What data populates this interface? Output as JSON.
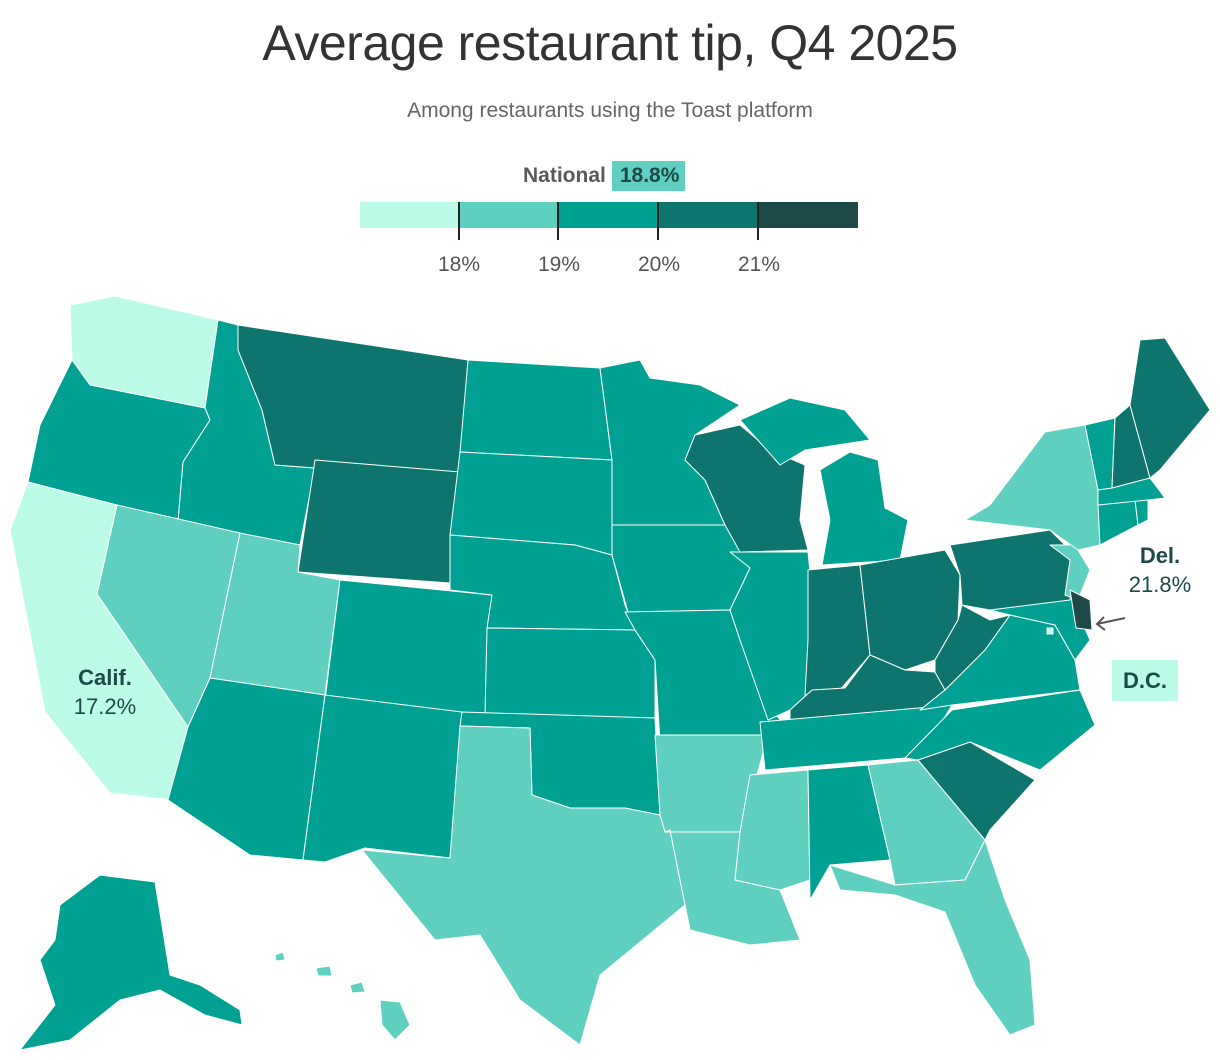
{
  "title": "Average restaurant tip, Q4 2025",
  "subtitle": "Among restaurants using the Toast platform",
  "national": {
    "label": "National",
    "value": "18.8%"
  },
  "legend": {
    "colors": [
      "#bdfbe9",
      "#5fcfc0",
      "#00a092",
      "#0d756d",
      "#1d4a48"
    ],
    "tick_labels": [
      "18%",
      "19%",
      "20%",
      "21%"
    ],
    "bin_edges": [
      18,
      19,
      20,
      21
    ]
  },
  "annotations": {
    "california": {
      "name": "Calif.",
      "value": "17.2%"
    },
    "delaware": {
      "name": "Del.",
      "value": "21.8%"
    },
    "dc": {
      "name": "D.C."
    }
  },
  "chart_data": {
    "type": "choropleth",
    "unit": "%",
    "national_average": 18.8,
    "color_bins": [
      {
        "range": "<18%",
        "color": "#bdfbe9"
      },
      {
        "range": "18–19%",
        "color": "#5fcfc0"
      },
      {
        "range": "19–20%",
        "color": "#00a092"
      },
      {
        "range": "20–21%",
        "color": "#0d756d"
      },
      {
        "range": ">21%",
        "color": "#1d4a48"
      }
    ],
    "labeled_values": {
      "CA": 17.2,
      "DE": 21.8
    },
    "state_bins": {
      "WA": 0,
      "CA": 0,
      "DC": 0,
      "NV": 1,
      "UT": 1,
      "TX": 1,
      "AR": 1,
      "LA": 1,
      "MS": 1,
      "GA": 1,
      "FL": 1,
      "NY": 1,
      "NJ": 1,
      "HI": 1,
      "OR": 2,
      "ID": 2,
      "AZ": 2,
      "NM": 2,
      "CO": 2,
      "ND": 2,
      "SD": 2,
      "NE": 2,
      "KS": 2,
      "OK": 2,
      "MN": 2,
      "IA": 2,
      "MO": 2,
      "IL": 2,
      "MI": 2,
      "AL": 2,
      "TN": 2,
      "NC": 2,
      "VA": 2,
      "MD": 2,
      "VT": 2,
      "MA": 2,
      "CT": 2,
      "RI": 2,
      "AK": 2,
      "MT": 3,
      "WY": 3,
      "WI": 3,
      "IN": 3,
      "OH": 3,
      "KY": 3,
      "WV": 3,
      "PA": 3,
      "SC": 3,
      "NH": 3,
      "ME": 3,
      "DE": 4
    }
  }
}
